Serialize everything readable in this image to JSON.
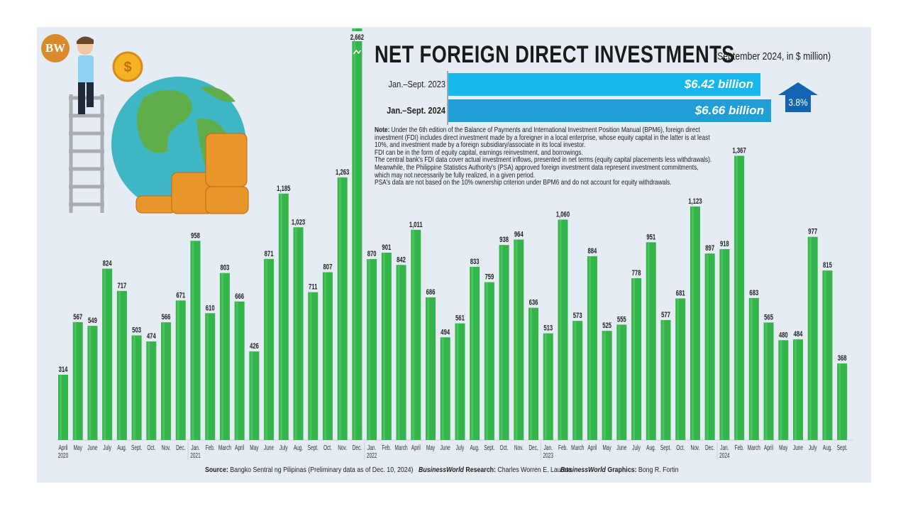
{
  "logo": "BW",
  "title": "NET FOREIGN DIRECT INVESTMENTS",
  "subtitle": "(September 2024, in $ million)",
  "summary": {
    "rows": [
      {
        "label": "Jan.–Sept. 2023",
        "value_label": "$6.42 billion",
        "value": 6.42,
        "color": "#16b7ea"
      },
      {
        "label": "Jan.–Sept. 2024",
        "value_label": "$6.66 billion",
        "value": 6.66,
        "color": "#1f9fd6"
      }
    ],
    "change_label": "3.8%",
    "change_direction": "up",
    "change_color": "#1464b4"
  },
  "note": {
    "label": "Note:",
    "lines": [
      "Under the 6th edition of the Balance of Payments and International Investment Position Manual (BPM6), foreign direct",
      "investment (FDI) includes direct investment made by a foreigner in a local enterprise, whose equity capital in the latter is at least",
      "10%, and investment made by a foreign subsidiary/associate in its local investor.",
      "FDI can be in the form of equity capital, earnings reinvestment, and borrowings.",
      "The central bank's FDI data cover actual investment inflows, presented in net terms (equity capital placements less withdrawals).",
      "Meanwhile, the Philippine Statistics Authority's (PSA) approved foreign investment data represent investment commitments,",
      "which may not necessarily be fully realized, in a given period.",
      "PSA's data are not based on the 10% ownership criterion under BPM6 and do not account for equity withdrawals."
    ]
  },
  "chart_data": {
    "type": "bar",
    "title": "NET FOREIGN DIRECT INVESTMENTS",
    "subtitle": "(September 2024, in $ million)",
    "bar_color": "#34b44a",
    "broken_axis_bar": "Dec. 2021",
    "categories": [
      "April",
      "May",
      "June",
      "July",
      "Aug.",
      "Sept.",
      "Oct.",
      "Nov.",
      "Dec.",
      "Jan.",
      "Feb.",
      "March",
      "April",
      "May",
      "June",
      "July",
      "Aug.",
      "Sept.",
      "Oct.",
      "Nov.",
      "Dec.",
      "Jan.",
      "Feb.",
      "March",
      "April",
      "May",
      "June",
      "July",
      "Aug.",
      "Sept.",
      "Oct.",
      "Nov.",
      "Dec.",
      "Jan.",
      "Feb.",
      "March",
      "April",
      "May",
      "June",
      "July",
      "Aug.",
      "Sept.",
      "Oct.",
      "Nov.",
      "Dec.",
      "Jan.",
      "Feb.",
      "March",
      "April",
      "May",
      "June",
      "July",
      "Aug.",
      "Sept."
    ],
    "years": {
      "0": "2020",
      "9": "2021",
      "21": "2022",
      "33": "2023",
      "45": "2024"
    },
    "values": [
      314,
      567,
      549,
      824,
      717,
      503,
      474,
      566,
      671,
      958,
      610,
      803,
      666,
      426,
      871,
      1185,
      1023,
      711,
      807,
      1263,
      2662,
      870,
      901,
      842,
      1011,
      686,
      494,
      561,
      833,
      759,
      938,
      964,
      636,
      513,
      1060,
      573,
      884,
      525,
      555,
      778,
      951,
      577,
      681,
      1123,
      897,
      918,
      1367,
      683,
      565,
      480,
      484,
      977,
      815,
      368
    ],
    "value_labels": [
      "314",
      "567",
      "549",
      "824",
      "717",
      "503",
      "474",
      "566",
      "671",
      "958",
      "610",
      "803",
      "666",
      "426",
      "871",
      "1,185",
      "1,023",
      "711",
      "807",
      "1,263",
      "2,662",
      "870",
      "901",
      "842",
      "1,011",
      "686",
      "494",
      "561",
      "833",
      "759",
      "938",
      "964",
      "636",
      "513",
      "1,060",
      "573",
      "884",
      "525",
      "555",
      "778",
      "951",
      "577",
      "681",
      "1,123",
      "897",
      "918",
      "1,367",
      "683",
      "565",
      "480",
      "484",
      "977",
      "815",
      "368"
    ]
  },
  "footer": {
    "source_label": "Source:",
    "source": "Bangko Sentral ng Pilipinas (Preliminary data as of Dec. 10, 2024)",
    "research_brand": "BusinessWorld",
    "research_label": "Research:",
    "research": "Charles Worren E. Laureta",
    "graphics_brand": "BusinessWorld",
    "graphics_label": "Graphics:",
    "graphics": "Bong R. Fortin"
  }
}
